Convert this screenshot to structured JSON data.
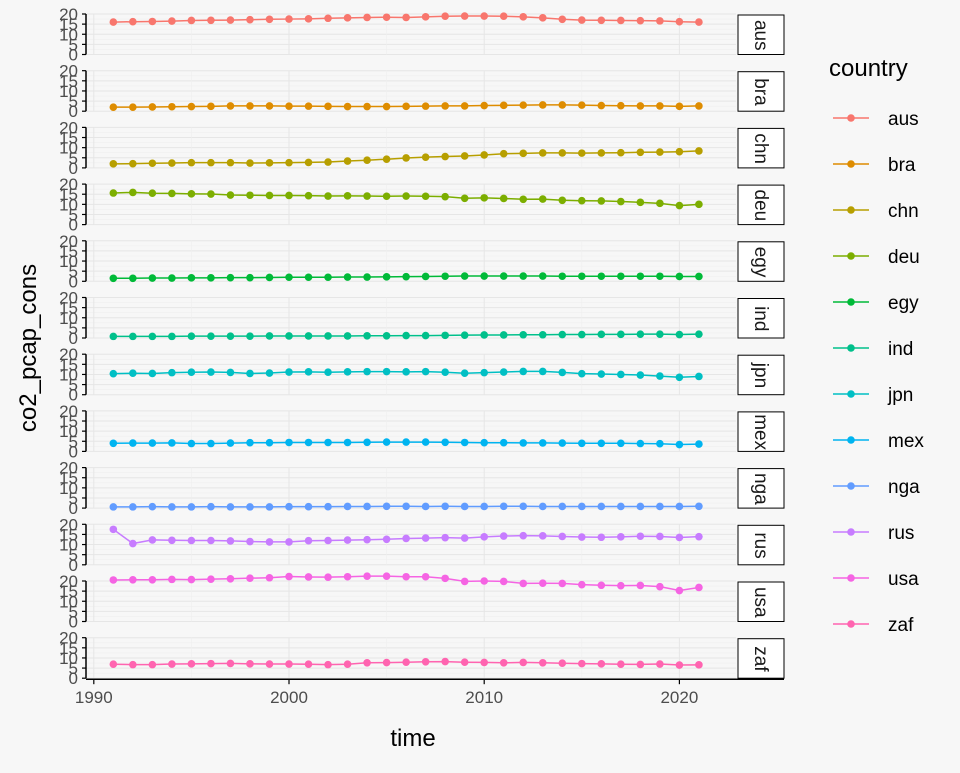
{
  "chart_data": {
    "type": "line",
    "facet_by": "country",
    "xlabel": "time",
    "ylabel": "co2_pcap_cons",
    "xlim": [
      1990,
      2021
    ],
    "x_ticks": [
      1990,
      2000,
      2010,
      2020
    ],
    "ylim": [
      0,
      20
    ],
    "y_ticks": [
      0,
      5,
      10,
      15,
      20
    ],
    "grid": true,
    "legend": {
      "title": "country",
      "position": "right"
    },
    "x": [
      1991,
      1992,
      1993,
      1994,
      1995,
      1996,
      1997,
      1998,
      1999,
      2000,
      2001,
      2002,
      2003,
      2004,
      2005,
      2006,
      2007,
      2008,
      2009,
      2010,
      2011,
      2012,
      2013,
      2014,
      2015,
      2016,
      2017,
      2018,
      2019,
      2020,
      2021
    ],
    "series": [
      {
        "name": "aus",
        "color": "#F8766D",
        "values": [
          16.0,
          16.2,
          16.3,
          16.5,
          16.8,
          16.9,
          17.0,
          17.2,
          17.4,
          17.5,
          17.6,
          17.9,
          18.1,
          18.3,
          18.4,
          18.3,
          18.6,
          18.9,
          19.0,
          19.0,
          18.9,
          18.6,
          18.1,
          17.4,
          17.0,
          16.9,
          16.8,
          16.7,
          16.6,
          16.2,
          16.0
        ]
      },
      {
        "name": "bra",
        "color": "#DE8C00",
        "values": [
          2.0,
          2.0,
          2.1,
          2.2,
          2.3,
          2.4,
          2.6,
          2.6,
          2.6,
          2.5,
          2.5,
          2.4,
          2.3,
          2.3,
          2.3,
          2.4,
          2.5,
          2.6,
          2.6,
          2.8,
          2.9,
          3.0,
          3.1,
          3.1,
          3.0,
          2.8,
          2.7,
          2.6,
          2.6,
          2.4,
          2.6
        ]
      },
      {
        "name": "chn",
        "color": "#B79F00",
        "values": [
          2.0,
          2.1,
          2.3,
          2.4,
          2.6,
          2.6,
          2.6,
          2.4,
          2.5,
          2.6,
          2.7,
          2.9,
          3.4,
          3.8,
          4.3,
          4.9,
          5.3,
          5.6,
          5.9,
          6.4,
          7.0,
          7.2,
          7.4,
          7.4,
          7.3,
          7.4,
          7.5,
          7.7,
          7.8,
          8.0,
          8.4
        ]
      },
      {
        "name": "deu",
        "color": "#7CAE00",
        "values": [
          15.6,
          15.9,
          15.5,
          15.4,
          15.2,
          15.1,
          14.6,
          14.5,
          14.4,
          14.4,
          14.3,
          14.1,
          14.2,
          14.1,
          14.0,
          14.1,
          14.0,
          13.8,
          13.0,
          13.2,
          12.9,
          12.5,
          12.6,
          12.0,
          11.8,
          11.7,
          11.4,
          11.0,
          10.5,
          9.4,
          10.0
        ]
      },
      {
        "name": "egy",
        "color": "#00BA38",
        "values": [
          1.5,
          1.5,
          1.6,
          1.6,
          1.7,
          1.7,
          1.8,
          1.8,
          1.9,
          2.0,
          2.0,
          2.0,
          2.1,
          2.1,
          2.2,
          2.3,
          2.4,
          2.5,
          2.6,
          2.6,
          2.6,
          2.6,
          2.6,
          2.5,
          2.5,
          2.5,
          2.5,
          2.5,
          2.5,
          2.4,
          2.4
        ]
      },
      {
        "name": "ind",
        "color": "#00C08B",
        "values": [
          0.8,
          0.8,
          0.8,
          0.8,
          0.9,
          0.9,
          0.9,
          0.9,
          1.0,
          1.0,
          1.0,
          1.0,
          1.0,
          1.1,
          1.1,
          1.2,
          1.2,
          1.3,
          1.4,
          1.5,
          1.5,
          1.6,
          1.6,
          1.7,
          1.7,
          1.8,
          1.8,
          1.9,
          1.9,
          1.7,
          1.9
        ]
      },
      {
        "name": "jpn",
        "color": "#00BFC4",
        "values": [
          10.4,
          10.6,
          10.5,
          10.9,
          11.1,
          11.2,
          11.0,
          10.5,
          10.7,
          11.2,
          11.3,
          11.1,
          11.3,
          11.4,
          11.4,
          11.3,
          11.4,
          11.1,
          10.6,
          10.9,
          11.2,
          11.5,
          11.5,
          11.0,
          10.4,
          10.2,
          10.0,
          9.7,
          9.2,
          8.6,
          9.0
        ]
      },
      {
        "name": "mex",
        "color": "#00B4F0",
        "values": [
          4.0,
          4.1,
          4.1,
          4.2,
          3.9,
          3.9,
          4.1,
          4.3,
          4.3,
          4.4,
          4.4,
          4.4,
          4.4,
          4.5,
          4.6,
          4.6,
          4.6,
          4.5,
          4.4,
          4.3,
          4.3,
          4.2,
          4.2,
          4.1,
          4.0,
          4.0,
          4.0,
          3.9,
          3.8,
          3.4,
          3.6
        ]
      },
      {
        "name": "nga",
        "color": "#619CFF",
        "values": [
          0.6,
          0.6,
          0.7,
          0.6,
          0.6,
          0.7,
          0.6,
          0.6,
          0.6,
          0.7,
          0.7,
          0.7,
          0.8,
          0.8,
          0.9,
          0.9,
          0.8,
          0.9,
          0.8,
          0.8,
          0.9,
          0.9,
          0.8,
          0.8,
          0.8,
          0.8,
          0.8,
          0.8,
          0.8,
          0.8,
          0.9
        ]
      },
      {
        "name": "rus",
        "color": "#C77CFF",
        "values": [
          17.5,
          10.5,
          12.3,
          12.1,
          12.0,
          12.0,
          11.8,
          11.5,
          11.3,
          11.3,
          11.9,
          12.0,
          12.2,
          12.4,
          12.6,
          13.0,
          13.2,
          13.4,
          13.2,
          13.8,
          14.2,
          14.4,
          14.3,
          14.0,
          13.7,
          13.6,
          13.8,
          14.1,
          14.0,
          13.5,
          13.9
        ]
      },
      {
        "name": "usa",
        "color": "#F564E3",
        "values": [
          20.5,
          20.6,
          20.6,
          20.8,
          20.7,
          20.9,
          21.1,
          21.4,
          21.6,
          22.2,
          22.0,
          21.9,
          22.1,
          22.4,
          22.4,
          22.1,
          22.1,
          21.3,
          19.8,
          20.0,
          19.8,
          18.8,
          18.9,
          18.8,
          18.2,
          17.9,
          17.7,
          17.8,
          17.2,
          15.3,
          16.8
        ]
      },
      {
        "name": "zaf",
        "color": "#FF64B0",
        "values": [
          6.9,
          6.7,
          6.7,
          7.0,
          7.1,
          7.2,
          7.3,
          7.1,
          7.0,
          7.0,
          6.9,
          6.7,
          6.9,
          7.6,
          7.7,
          7.9,
          8.1,
          8.2,
          7.9,
          7.8,
          7.6,
          7.8,
          7.6,
          7.4,
          7.2,
          7.1,
          6.9,
          6.8,
          7.0,
          6.5,
          6.6
        ]
      }
    ]
  }
}
